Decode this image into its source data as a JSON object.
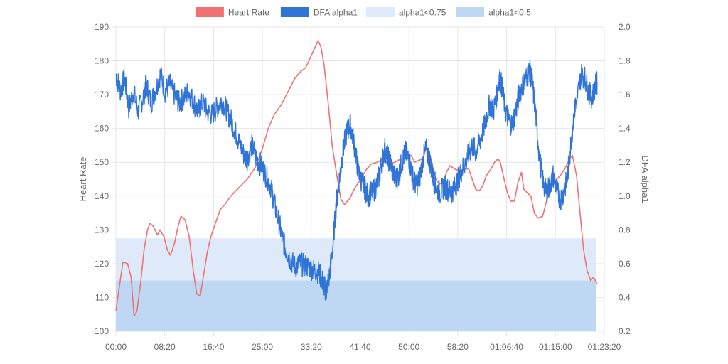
{
  "chart_data": {
    "type": "line",
    "legend": {
      "placement": "top-center",
      "items": [
        {
          "label": "Heart Rate",
          "color": "#f27173",
          "kind": "line"
        },
        {
          "label": "DFA alpha1",
          "color": "#2f74d6",
          "kind": "line"
        },
        {
          "label": "alpha1<0.75",
          "color": "#deeaf9",
          "kind": "band"
        },
        {
          "label": "alpha1<0.5",
          "color": "#bed8f4",
          "kind": "band"
        }
      ]
    },
    "x_axis": {
      "unit": "minutes",
      "range": [
        0,
        83.333
      ],
      "tick_labels": [
        "00:00",
        "08:20",
        "16:40",
        "25:00",
        "33:20",
        "41:40",
        "50:00",
        "58:20",
        "01:06:40",
        "01:15:00",
        "01:23:20"
      ],
      "tick_values": [
        0,
        8.333,
        16.667,
        25,
        33.333,
        41.667,
        50,
        58.333,
        66.667,
        75,
        83.333
      ]
    },
    "y_left": {
      "label": "Heart Rate",
      "range": [
        100,
        190
      ],
      "ticks": [
        "100",
        "110",
        "120",
        "130",
        "140",
        "150",
        "160",
        "170",
        "180",
        "190"
      ]
    },
    "y_right": {
      "label": "DFA alpha1",
      "range": [
        0.2,
        2.0
      ],
      "ticks": [
        "0.2",
        "0.4",
        "0.6",
        "0.8",
        "1.0",
        "1.2",
        "1.4",
        "1.6",
        "1.8",
        "2.0"
      ]
    },
    "grid": true,
    "bands": [
      {
        "name": "alpha1<0.75",
        "from": 0.2,
        "to": 0.75,
        "x_end": 82.0,
        "color": "#deeaf9"
      },
      {
        "name": "alpha1<0.5",
        "from": 0.2,
        "to": 0.5,
        "x_end": 82.0,
        "color": "#bed8f4"
      }
    ],
    "series": [
      {
        "name": "Heart Rate",
        "axis": "left",
        "color": "#f27173",
        "points": [
          [
            0,
            106
          ],
          [
            0.5,
            112
          ],
          [
            1.2,
            120.5
          ],
          [
            2,
            120
          ],
          [
            2.6,
            116
          ],
          [
            3.1,
            104.5
          ],
          [
            3.6,
            106
          ],
          [
            4.2,
            114
          ],
          [
            4.8,
            124
          ],
          [
            5.4,
            130
          ],
          [
            5.8,
            132
          ],
          [
            6.4,
            131
          ],
          [
            7.1,
            128.5
          ],
          [
            7.5,
            130
          ],
          [
            8.2,
            128
          ],
          [
            8.8,
            124
          ],
          [
            9.3,
            122.5
          ],
          [
            10,
            126
          ],
          [
            10.6,
            131
          ],
          [
            11.1,
            134
          ],
          [
            11.8,
            133
          ],
          [
            12.5,
            128
          ],
          [
            13.2,
            118
          ],
          [
            13.8,
            111
          ],
          [
            14.4,
            110.5
          ],
          [
            15,
            117
          ],
          [
            15.6,
            123.5
          ],
          [
            16.2,
            128
          ],
          [
            17,
            132
          ],
          [
            17.8,
            136
          ],
          [
            18.6,
            137.5
          ],
          [
            19.6,
            140
          ],
          [
            21,
            142.5
          ],
          [
            22.4,
            145
          ],
          [
            23.8,
            148.5
          ],
          [
            25,
            154
          ],
          [
            26,
            160
          ],
          [
            27,
            164
          ],
          [
            28.2,
            167
          ],
          [
            29.4,
            171
          ],
          [
            30.6,
            175
          ],
          [
            31.6,
            177
          ],
          [
            32.4,
            178
          ],
          [
            33.2,
            181
          ],
          [
            34,
            184
          ],
          [
            34.5,
            186
          ],
          [
            35,
            184
          ],
          [
            35.5,
            179
          ],
          [
            36.2,
            168
          ],
          [
            36.9,
            155
          ],
          [
            37.8,
            145
          ],
          [
            38.4,
            139
          ],
          [
            39,
            137.5
          ],
          [
            39.8,
            139
          ],
          [
            40.8,
            142.5
          ],
          [
            41.8,
            145
          ],
          [
            42.8,
            148
          ],
          [
            43.6,
            149.5
          ],
          [
            44.6,
            150
          ],
          [
            45.6,
            151
          ],
          [
            46.6,
            149.5
          ],
          [
            47.6,
            150
          ],
          [
            48.6,
            151
          ],
          [
            49.6,
            151
          ],
          [
            50.4,
            152
          ],
          [
            51,
            150
          ],
          [
            51.6,
            150.5
          ],
          [
            52.4,
            151
          ],
          [
            52.9,
            154
          ],
          [
            53.5,
            153
          ],
          [
            54,
            149
          ],
          [
            54.6,
            145
          ],
          [
            55.2,
            143.5
          ],
          [
            55.8,
            144
          ],
          [
            56.4,
            147
          ],
          [
            57,
            149
          ],
          [
            57.8,
            148
          ],
          [
            58.6,
            147.5
          ],
          [
            59.5,
            148
          ],
          [
            60.2,
            148
          ],
          [
            60.8,
            145
          ],
          [
            61.4,
            142
          ],
          [
            62,
            141.5
          ],
          [
            62.6,
            143
          ],
          [
            63.2,
            146
          ],
          [
            64,
            148
          ],
          [
            64.6,
            150
          ],
          [
            65.2,
            151
          ],
          [
            65.6,
            150
          ],
          [
            66.1,
            146
          ],
          [
            66.8,
            141
          ],
          [
            67.4,
            138.5
          ],
          [
            68,
            138.5
          ],
          [
            68.6,
            144
          ],
          [
            69.2,
            147
          ],
          [
            69.6,
            142
          ],
          [
            70.2,
            141
          ],
          [
            70.8,
            140
          ],
          [
            71.4,
            135
          ],
          [
            72,
            133.5
          ],
          [
            72.8,
            134
          ],
          [
            73.4,
            138
          ],
          [
            74,
            141
          ],
          [
            74.6,
            143.5
          ],
          [
            75.2,
            145
          ],
          [
            75.8,
            146
          ],
          [
            76.6,
            148
          ],
          [
            77.4,
            151
          ],
          [
            77.9,
            152
          ],
          [
            78.6,
            146
          ],
          [
            79.2,
            135
          ],
          [
            79.8,
            124
          ],
          [
            80.4,
            118
          ],
          [
            81,
            115
          ],
          [
            81.5,
            116
          ],
          [
            82.1,
            114
          ]
        ]
      },
      {
        "name": "DFA alpha1",
        "axis": "right",
        "color": "#2f74d6",
        "points": [
          [
            0,
            1.72
          ],
          [
            0.8,
            1.62
          ],
          [
            1.5,
            1.7
          ],
          [
            2.2,
            1.52
          ],
          [
            3,
            1.62
          ],
          [
            3.8,
            1.5
          ],
          [
            4.6,
            1.58
          ],
          [
            5.2,
            1.66
          ],
          [
            6,
            1.55
          ],
          [
            6.8,
            1.64
          ],
          [
            7.6,
            1.72
          ],
          [
            8.4,
            1.62
          ],
          [
            9.2,
            1.66
          ],
          [
            10,
            1.6
          ],
          [
            10.8,
            1.55
          ],
          [
            11.6,
            1.58
          ],
          [
            12.4,
            1.62
          ],
          [
            13.2,
            1.56
          ],
          [
            14,
            1.5
          ],
          [
            14.8,
            1.55
          ],
          [
            15.6,
            1.5
          ],
          [
            16.4,
            1.48
          ],
          [
            17.2,
            1.52
          ],
          [
            18,
            1.56
          ],
          [
            18.8,
            1.52
          ],
          [
            19.6,
            1.45
          ],
          [
            20.4,
            1.38
          ],
          [
            21,
            1.32
          ],
          [
            21.8,
            1.25
          ],
          [
            22.4,
            1.22
          ],
          [
            23.2,
            1.3
          ],
          [
            24,
            1.22
          ],
          [
            24.8,
            1.18
          ],
          [
            25.6,
            1.12
          ],
          [
            26.4,
            1.06
          ],
          [
            27,
            0.96
          ],
          [
            27.8,
            0.85
          ],
          [
            28.4,
            0.75
          ],
          [
            29,
            0.68
          ],
          [
            29.8,
            0.62
          ],
          [
            30.6,
            0.58
          ],
          [
            31.4,
            0.6
          ],
          [
            32.2,
            0.59
          ],
          [
            33,
            0.58
          ],
          [
            33.8,
            0.56
          ],
          [
            34.6,
            0.55
          ],
          [
            35.2,
            0.5
          ],
          [
            35.6,
            0.46
          ],
          [
            35.9,
            0.44
          ],
          [
            36.4,
            0.52
          ],
          [
            37,
            0.7
          ],
          [
            37.6,
            0.95
          ],
          [
            38.2,
            1.12
          ],
          [
            38.8,
            1.28
          ],
          [
            39.4,
            1.38
          ],
          [
            40,
            1.42
          ],
          [
            40.6,
            1.32
          ],
          [
            41.2,
            1.18
          ],
          [
            41.8,
            1.1
          ],
          [
            42.4,
            1.05
          ],
          [
            43,
            1.0
          ],
          [
            43.6,
            1.02
          ],
          [
            44.2,
            1.04
          ],
          [
            44.8,
            1.1
          ],
          [
            45.4,
            1.2
          ],
          [
            45.9,
            1.28
          ],
          [
            46.5,
            1.22
          ],
          [
            47,
            1.18
          ],
          [
            47.6,
            1.1
          ],
          [
            48.2,
            1.12
          ],
          [
            48.8,
            1.2
          ],
          [
            49.4,
            1.26
          ],
          [
            50,
            1.22
          ],
          [
            50.6,
            1.12
          ],
          [
            51.2,
            1.06
          ],
          [
            51.8,
            1.1
          ],
          [
            52.4,
            1.22
          ],
          [
            53,
            1.28
          ],
          [
            53.6,
            1.2
          ],
          [
            54.2,
            1.1
          ],
          [
            54.8,
            1.04
          ],
          [
            55.4,
            1.02
          ],
          [
            56,
            1.06
          ],
          [
            56.6,
            1.04
          ],
          [
            57.2,
            1.02
          ],
          [
            57.8,
            1.05
          ],
          [
            58.4,
            1.1
          ],
          [
            59,
            1.15
          ],
          [
            59.6,
            1.2
          ],
          [
            60.2,
            1.25
          ],
          [
            60.8,
            1.3
          ],
          [
            61.4,
            1.26
          ],
          [
            62,
            1.32
          ],
          [
            62.6,
            1.38
          ],
          [
            63.2,
            1.46
          ],
          [
            63.8,
            1.55
          ],
          [
            64.4,
            1.5
          ],
          [
            65,
            1.6
          ],
          [
            65.4,
            1.7
          ],
          [
            65.8,
            1.66
          ],
          [
            66.4,
            1.52
          ],
          [
            67,
            1.45
          ],
          [
            67.6,
            1.42
          ],
          [
            68.2,
            1.5
          ],
          [
            68.8,
            1.6
          ],
          [
            69.4,
            1.66
          ],
          [
            70,
            1.7
          ],
          [
            70.6,
            1.74
          ],
          [
            71,
            1.68
          ],
          [
            71.6,
            1.5
          ],
          [
            72.2,
            1.25
          ],
          [
            72.8,
            1.1
          ],
          [
            73.4,
            1.02
          ],
          [
            74,
            1.06
          ],
          [
            74.6,
            1.12
          ],
          [
            75.2,
            1.04
          ],
          [
            75.8,
            0.98
          ],
          [
            76.4,
            1.02
          ],
          [
            77,
            1.1
          ],
          [
            77.6,
            1.3
          ],
          [
            78.2,
            1.5
          ],
          [
            78.8,
            1.6
          ],
          [
            79.4,
            1.72
          ],
          [
            80,
            1.7
          ],
          [
            80.6,
            1.62
          ],
          [
            81.2,
            1.58
          ],
          [
            81.8,
            1.65
          ],
          [
            82.1,
            1.67
          ]
        ]
      }
    ]
  }
}
